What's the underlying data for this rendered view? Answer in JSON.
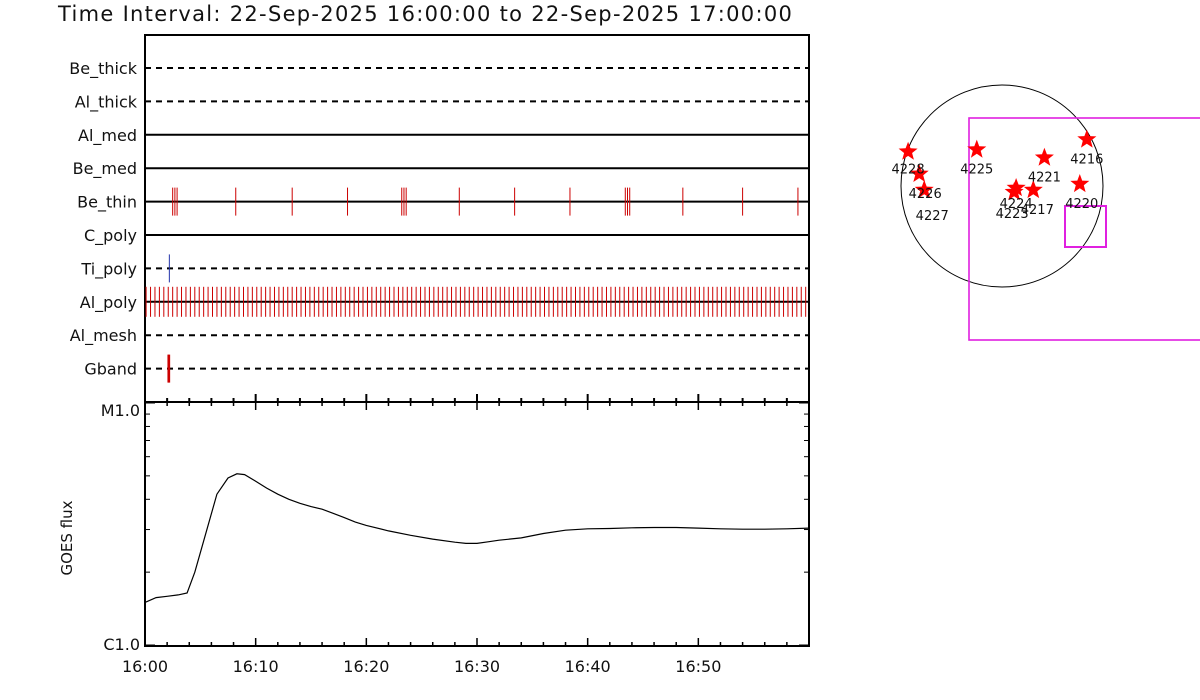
{
  "title": "Time Interval: 22-Sep-2025 16:00:00 to 22-Sep-2025 17:00:00",
  "colors": {
    "axis": "#000000",
    "event": "#cc0000",
    "event_blue": "#2233aa",
    "star": "#ff0000",
    "box": "#e020e0"
  },
  "chart_data": [
    {
      "type": "event_timeline",
      "x_start": "16:00",
      "x_end": "17:00",
      "channels": [
        {
          "label": "Be_thick",
          "line": "dashed",
          "events": []
        },
        {
          "label": "Al_thick",
          "line": "dashed",
          "events": []
        },
        {
          "label": "Al_med",
          "line": "solid",
          "events": []
        },
        {
          "label": "Be_med",
          "line": "solid",
          "events": []
        },
        {
          "label": "Be_thin",
          "line": "solid",
          "event_color": "red",
          "events": [
            2.5,
            2.7,
            2.9,
            8.2,
            13.3,
            18.3,
            23.2,
            23.4,
            23.6,
            28.4,
            33.4,
            38.4,
            43.4,
            43.6,
            43.8,
            48.6,
            54.0,
            59.0
          ]
        },
        {
          "label": "C_poly",
          "line": "solid",
          "events": []
        },
        {
          "label": "Ti_poly",
          "line": "dashed",
          "event_color": "blue",
          "events": [
            2.2
          ]
        },
        {
          "label": "Al_poly",
          "line": "solid",
          "event_color": "red",
          "regular_interval_min": 0.4
        },
        {
          "label": "Al_mesh",
          "line": "dashed",
          "events": []
        },
        {
          "label": "Gband",
          "line": "dashed",
          "event_color": "red",
          "events": [
            2.1,
            2.2
          ]
        }
      ]
    },
    {
      "type": "line",
      "ylabel": "GOES flux",
      "y_scale": "log",
      "y_tick_labels": [
        "M1.0",
        "C1.0"
      ],
      "x_tick_labels": [
        "16:00",
        "16:10",
        "16:20",
        "16:30",
        "16:40",
        "16:50"
      ],
      "x_minutes": [
        0,
        1,
        2,
        3,
        3.8,
        4.5,
        5.5,
        6.5,
        7.5,
        8.3,
        9,
        10,
        11,
        12,
        13,
        14,
        15,
        16,
        17,
        18,
        19,
        20,
        22,
        24,
        26,
        28,
        29,
        30,
        31,
        32,
        34,
        36,
        38,
        40,
        42,
        44,
        46,
        48,
        50,
        52,
        54,
        56,
        58,
        60
      ],
      "y_flux": [
        1.5e-06,
        1.57e-06,
        1.59e-06,
        1.61e-06,
        1.64e-06,
        2e-06,
        2.9e-06,
        4.2e-06,
        4.9e-06,
        5.1e-06,
        5.06e-06,
        4.75e-06,
        4.45e-06,
        4.2e-06,
        4e-06,
        3.85e-06,
        3.73e-06,
        3.64e-06,
        3.5e-06,
        3.36e-06,
        3.22e-06,
        3.12e-06,
        2.96e-06,
        2.84e-06,
        2.74e-06,
        2.66e-06,
        2.63e-06,
        2.63e-06,
        2.67e-06,
        2.71e-06,
        2.77e-06,
        2.89e-06,
        2.98e-06,
        3.02e-06,
        3.03e-06,
        3.05e-06,
        3.06e-06,
        3.06e-06,
        3.04e-06,
        3.02e-06,
        3.01e-06,
        3.01e-06,
        3.02e-06,
        3.04e-06
      ]
    },
    {
      "type": "scatter",
      "subtype": "solar_disk_map",
      "ars": [
        {
          "label": "4228",
          "x": -0.93,
          "y": 0.34
        },
        {
          "label": "4226",
          "x": -0.82,
          "y": 0.12
        },
        {
          "label": "4227",
          "x": -0.77,
          "y": -0.04
        },
        {
          "label": "4225",
          "x": -0.25,
          "y": 0.36
        },
        {
          "label": "4224",
          "x": 0.14,
          "y": -0.02
        },
        {
          "label": "4223",
          "x": 0.12,
          "y": -0.06
        },
        {
          "label": "4217",
          "x": 0.31,
          "y": -0.04
        },
        {
          "label": "4221",
          "x": 0.42,
          "y": 0.28
        },
        {
          "label": "4216",
          "x": 0.84,
          "y": 0.46
        },
        {
          "label": "4220",
          "x": 0.77,
          "y": 0.02
        }
      ]
    }
  ]
}
